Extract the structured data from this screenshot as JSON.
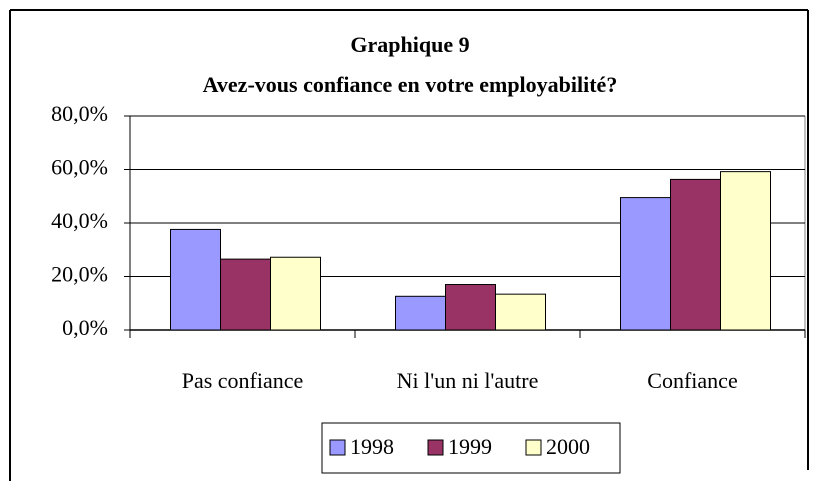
{
  "chart_data": {
    "type": "bar",
    "title": "Graphique 9",
    "subtitle": "Avez-vous confiance en votre employabilité?",
    "categories": [
      "Pas confiance",
      "Ni l'un ni l'autre",
      "Confiance"
    ],
    "series": [
      {
        "name": "1998",
        "color": "#9999ff",
        "values": [
          37.6,
          12.6,
          49.5
        ]
      },
      {
        "name": "1999",
        "color": "#993366",
        "values": [
          26.5,
          17.0,
          56.3
        ]
      },
      {
        "name": "2000",
        "color": "#ffffcc",
        "values": [
          27.2,
          13.4,
          59.2
        ]
      }
    ],
    "ylim": [
      0,
      80
    ],
    "yticks": [
      {
        "value": 0,
        "label": "0,0%"
      },
      {
        "value": 20,
        "label": "20,0%"
      },
      {
        "value": 40,
        "label": "40,0%"
      },
      {
        "value": 60,
        "label": "60,0%"
      },
      {
        "value": 80,
        "label": "80,0%"
      }
    ],
    "grid": true,
    "legend": "bottom"
  }
}
